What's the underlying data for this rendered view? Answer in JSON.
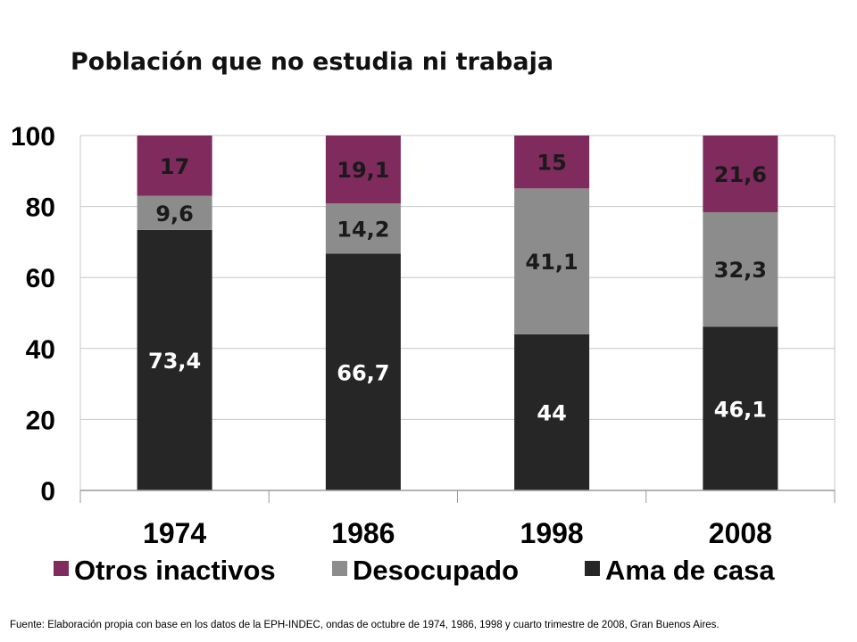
{
  "chart_data": {
    "type": "bar",
    "stacked": true,
    "title": "Población que no estudia ni trabaja",
    "categories": [
      "1974",
      "1986",
      "1998",
      "2008"
    ],
    "series": [
      {
        "name": "Ama de casa",
        "color": "#262626",
        "label_color": "#ffffff",
        "values": [
          73.4,
          66.7,
          44,
          46.1
        ],
        "labels": [
          "73,4",
          "66,7",
          "44",
          "46,1"
        ]
      },
      {
        "name": "Desocupado",
        "color": "#8c8c8c",
        "label_color": "#1a1a1a",
        "values": [
          9.6,
          14.2,
          41.1,
          32.3
        ],
        "labels": [
          "9,6",
          "14,2",
          "41,1",
          "32,3"
        ]
      },
      {
        "name": "Otros inactivos",
        "color": "#7f2b5e",
        "label_color": "#1a1a1a",
        "values": [
          17,
          19.1,
          15,
          21.6
        ],
        "labels": [
          "17",
          "19,1",
          "15",
          "21,6"
        ]
      }
    ],
    "legend_order": [
      "Otros inactivos",
      "Desocupado",
      "Ama de casa"
    ],
    "legend_position": "bottom",
    "ylim": [
      0,
      100
    ],
    "yticks": [
      0,
      20,
      40,
      60,
      80,
      100
    ],
    "grid": true,
    "xlabel": "",
    "ylabel": ""
  },
  "footnote": "Fuente: Elaboración propia con base en los datos de la EPH-INDEC, ondas de octubre de 1974,  1986,  1998  y cuarto trimestre de 2008,    Gran Buenos Aires."
}
